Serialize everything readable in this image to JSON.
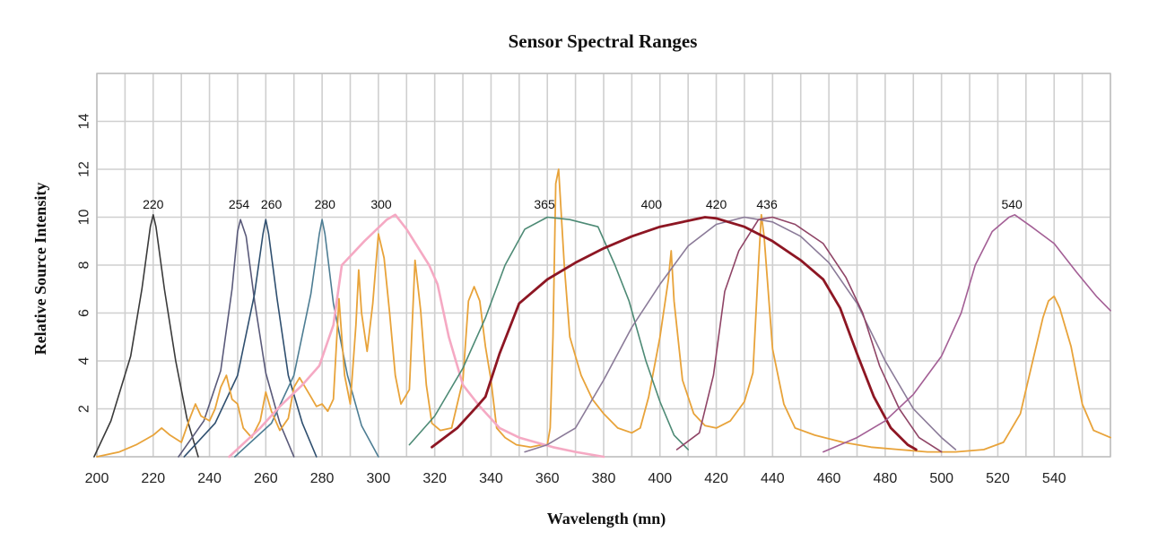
{
  "chart_data": {
    "type": "line",
    "title": "Sensor Spectral Ranges",
    "xlabel": "Wavelength (mn)",
    "ylabel": "Relative Source Intensity",
    "xlim": [
      200,
      560
    ],
    "ylim": [
      0,
      16
    ],
    "x_ticks": [
      200,
      220,
      240,
      260,
      280,
      300,
      320,
      340,
      360,
      380,
      400,
      420,
      440,
      460,
      480,
      500,
      520,
      540
    ],
    "y_ticks": [
      2,
      4,
      6,
      8,
      10,
      12,
      14
    ],
    "x_grid": [
      200,
      210,
      220,
      230,
      240,
      250,
      260,
      270,
      280,
      290,
      300,
      310,
      320,
      330,
      340,
      350,
      360,
      370,
      380,
      390,
      400,
      410,
      420,
      430,
      440,
      450,
      460,
      470,
      480,
      490,
      500,
      510,
      520,
      530,
      540,
      550,
      560
    ],
    "y_grid": [
      0,
      2,
      4,
      6,
      8,
      10,
      12,
      14,
      16
    ],
    "grid": true,
    "peak_labels": [
      {
        "text": "220",
        "x": 220
      },
      {
        "text": "254",
        "x": 250.5
      },
      {
        "text": "260",
        "x": 262
      },
      {
        "text": "280",
        "x": 281
      },
      {
        "text": "300",
        "x": 301
      },
      {
        "text": "365",
        "x": 359
      },
      {
        "text": "400",
        "x": 397
      },
      {
        "text": "420",
        "x": 420
      },
      {
        "text": "436",
        "x": 438
      },
      {
        "text": "540",
        "x": 525
      }
    ],
    "series": [
      {
        "color": "#3a3a3a",
        "width": 1.6,
        "points": [
          [
            199,
            0
          ],
          [
            205,
            1.5
          ],
          [
            212,
            4.2
          ],
          [
            216,
            7
          ],
          [
            219,
            9.6
          ],
          [
            220,
            10.1
          ],
          [
            221,
            9.6
          ],
          [
            224,
            7
          ],
          [
            228,
            4
          ],
          [
            232,
            1.6
          ],
          [
            236,
            0
          ]
        ]
      },
      {
        "color": "#5a5a7a",
        "width": 1.6,
        "points": [
          [
            229,
            0
          ],
          [
            238,
            1.5
          ],
          [
            244,
            3.6
          ],
          [
            248,
            7
          ],
          [
            250,
            9.4
          ],
          [
            251,
            9.9
          ],
          [
            253,
            9.2
          ],
          [
            256,
            6.5
          ],
          [
            260,
            3.5
          ],
          [
            265,
            1.4
          ],
          [
            270,
            0
          ]
        ]
      },
      {
        "color": "#2f4f6f",
        "width": 1.6,
        "points": [
          [
            231,
            0
          ],
          [
            242,
            1.4
          ],
          [
            250,
            3.4
          ],
          [
            256,
            6.8
          ],
          [
            259,
            9.3
          ],
          [
            260,
            9.9
          ],
          [
            261,
            9.3
          ],
          [
            264,
            6.6
          ],
          [
            268,
            3.4
          ],
          [
            273,
            1.4
          ],
          [
            278,
            0
          ]
        ]
      },
      {
        "color": "#4d7d93",
        "width": 1.6,
        "points": [
          [
            249,
            0
          ],
          [
            262,
            1.4
          ],
          [
            270,
            3.4
          ],
          [
            276,
            6.8
          ],
          [
            279,
            9.3
          ],
          [
            280,
            9.9
          ],
          [
            281,
            9.3
          ],
          [
            284,
            6.4
          ],
          [
            289,
            3.4
          ],
          [
            294,
            1.3
          ],
          [
            300,
            0
          ]
        ]
      },
      {
        "color": "#e8a33a",
        "width": 1.8,
        "points": [
          [
            200,
            0
          ],
          [
            208,
            0.2
          ],
          [
            214,
            0.5
          ],
          [
            220,
            0.9
          ],
          [
            223,
            1.2
          ],
          [
            226,
            0.9
          ],
          [
            230,
            0.6
          ],
          [
            233,
            1.6
          ],
          [
            235,
            2.2
          ],
          [
            237,
            1.7
          ],
          [
            240,
            1.5
          ],
          [
            242,
            2
          ],
          [
            244,
            2.9
          ],
          [
            246,
            3.4
          ],
          [
            248,
            2.4
          ],
          [
            250,
            2.2
          ],
          [
            252,
            1.2
          ],
          [
            255,
            0.8
          ],
          [
            258,
            1.5
          ],
          [
            260,
            2.7
          ],
          [
            262,
            1.9
          ],
          [
            265,
            1.1
          ],
          [
            268,
            1.6
          ],
          [
            270,
            2.9
          ],
          [
            272,
            3.3
          ],
          [
            274,
            2.9
          ],
          [
            276,
            2.5
          ],
          [
            278,
            2.1
          ],
          [
            280,
            2.2
          ],
          [
            282,
            1.9
          ],
          [
            284,
            2.4
          ],
          [
            286,
            6.6
          ],
          [
            288,
            3.4
          ],
          [
            290,
            2.2
          ],
          [
            292,
            5.5
          ],
          [
            293,
            7.8
          ],
          [
            294,
            6
          ],
          [
            296,
            4.4
          ],
          [
            298,
            6.4
          ],
          [
            300,
            9.3
          ],
          [
            302,
            8.3
          ],
          [
            304,
            6
          ],
          [
            306,
            3.4
          ],
          [
            308,
            2.2
          ],
          [
            311,
            2.8
          ],
          [
            313,
            8.2
          ],
          [
            315,
            6.1
          ],
          [
            317,
            3
          ],
          [
            319,
            1.4
          ],
          [
            322,
            1.1
          ],
          [
            326,
            1.2
          ],
          [
            330,
            3.2
          ],
          [
            332,
            6.5
          ],
          [
            334,
            7.1
          ],
          [
            336,
            6.5
          ],
          [
            338,
            4.6
          ],
          [
            340,
            3.2
          ],
          [
            342,
            1.2
          ],
          [
            345,
            0.8
          ],
          [
            349,
            0.5
          ],
          [
            354,
            0.4
          ],
          [
            358,
            0.5
          ],
          [
            360,
            0.5
          ],
          [
            361,
            1.2
          ],
          [
            362,
            5
          ],
          [
            363,
            11.4
          ],
          [
            364,
            12
          ],
          [
            366,
            8
          ],
          [
            368,
            5
          ],
          [
            372,
            3.4
          ],
          [
            376,
            2.4
          ],
          [
            380,
            1.8
          ],
          [
            385,
            1.2
          ],
          [
            390,
            1
          ],
          [
            393,
            1.2
          ],
          [
            396,
            2.5
          ],
          [
            400,
            5
          ],
          [
            403,
            7.4
          ],
          [
            404,
            8.6
          ],
          [
            405,
            6.5
          ],
          [
            408,
            3.2
          ],
          [
            412,
            1.8
          ],
          [
            416,
            1.3
          ],
          [
            420,
            1.2
          ],
          [
            425,
            1.5
          ],
          [
            430,
            2.3
          ],
          [
            433,
            3.5
          ],
          [
            435,
            8
          ],
          [
            436,
            10.1
          ],
          [
            437,
            9.2
          ],
          [
            440,
            4.5
          ],
          [
            444,
            2.2
          ],
          [
            448,
            1.2
          ],
          [
            455,
            0.9
          ],
          [
            465,
            0.6
          ],
          [
            475,
            0.4
          ],
          [
            485,
            0.3
          ],
          [
            495,
            0.2
          ],
          [
            505,
            0.2
          ],
          [
            515,
            0.3
          ],
          [
            522,
            0.6
          ],
          [
            528,
            1.8
          ],
          [
            532,
            3.8
          ],
          [
            536,
            5.8
          ],
          [
            538,
            6.5
          ],
          [
            540,
            6.7
          ],
          [
            542,
            6.2
          ],
          [
            546,
            4.6
          ],
          [
            550,
            2.2
          ],
          [
            554,
            1.1
          ],
          [
            560,
            0.8
          ]
        ]
      },
      {
        "color": "#f5a9c3",
        "width": 2.6,
        "points": [
          [
            247,
            0
          ],
          [
            258,
            1.2
          ],
          [
            265,
            2.1
          ],
          [
            273,
            3
          ],
          [
            279,
            3.8
          ],
          [
            284,
            5.5
          ],
          [
            287,
            8
          ],
          [
            295,
            9
          ],
          [
            303,
            9.9
          ],
          [
            306,
            10.1
          ],
          [
            310,
            9.5
          ],
          [
            318,
            8
          ],
          [
            321,
            7.2
          ],
          [
            325,
            5
          ],
          [
            330,
            3
          ],
          [
            336,
            2.1
          ],
          [
            343,
            1.2
          ],
          [
            350,
            0.8
          ],
          [
            362,
            0.4
          ],
          [
            370,
            0.2
          ],
          [
            380,
            0
          ]
        ]
      },
      {
        "color": "#4d8a75",
        "width": 1.6,
        "points": [
          [
            311,
            0.5
          ],
          [
            320,
            1.7
          ],
          [
            330,
            3.7
          ],
          [
            338,
            5.8
          ],
          [
            345,
            8
          ],
          [
            352,
            9.5
          ],
          [
            360,
            10
          ],
          [
            368,
            9.9
          ],
          [
            378,
            9.6
          ],
          [
            384,
            8
          ],
          [
            389,
            6.5
          ],
          [
            395,
            4
          ],
          [
            400,
            2.3
          ],
          [
            405,
            0.9
          ],
          [
            410,
            0.3
          ]
        ]
      },
      {
        "color": "#8a7a98",
        "width": 1.6,
        "points": [
          [
            352,
            0.2
          ],
          [
            360,
            0.5
          ],
          [
            370,
            1.2
          ],
          [
            380,
            3.2
          ],
          [
            390,
            5.4
          ],
          [
            400,
            7.2
          ],
          [
            410,
            8.8
          ],
          [
            420,
            9.7
          ],
          [
            430,
            10
          ],
          [
            440,
            9.8
          ],
          [
            450,
            9.2
          ],
          [
            460,
            8.1
          ],
          [
            470,
            6.4
          ],
          [
            480,
            4
          ],
          [
            490,
            2
          ],
          [
            500,
            0.8
          ],
          [
            505,
            0.3
          ]
        ]
      },
      {
        "color": "#8f4466",
        "width": 1.6,
        "points": [
          [
            406,
            0.3
          ],
          [
            414,
            1
          ],
          [
            419,
            3.4
          ],
          [
            423,
            6.9
          ],
          [
            428,
            8.6
          ],
          [
            435,
            9.9
          ],
          [
            440,
            10
          ],
          [
            448,
            9.7
          ],
          [
            458,
            8.9
          ],
          [
            466,
            7.5
          ],
          [
            472,
            6
          ],
          [
            478,
            3.8
          ],
          [
            485,
            2
          ],
          [
            492,
            0.8
          ],
          [
            500,
            0.2
          ]
        ]
      },
      {
        "color": "#8d1623",
        "width": 2.8,
        "points": [
          [
            319,
            0.4
          ],
          [
            328,
            1.2
          ],
          [
            335,
            2.1
          ],
          [
            338,
            2.5
          ],
          [
            343,
            4.3
          ],
          [
            350,
            6.4
          ],
          [
            360,
            7.4
          ],
          [
            370,
            8.1
          ],
          [
            380,
            8.7
          ],
          [
            390,
            9.2
          ],
          [
            400,
            9.6
          ],
          [
            410,
            9.85
          ],
          [
            416,
            10
          ],
          [
            420,
            9.95
          ],
          [
            430,
            9.6
          ],
          [
            440,
            9
          ],
          [
            450,
            8.2
          ],
          [
            458,
            7.4
          ],
          [
            464,
            6.2
          ],
          [
            470,
            4.3
          ],
          [
            476,
            2.5
          ],
          [
            482,
            1.2
          ],
          [
            488,
            0.5
          ],
          [
            491,
            0.3
          ]
        ]
      },
      {
        "color": "#a35f95",
        "width": 1.6,
        "points": [
          [
            458,
            0.2
          ],
          [
            470,
            0.8
          ],
          [
            480,
            1.5
          ],
          [
            490,
            2.6
          ],
          [
            500,
            4.2
          ],
          [
            507,
            6
          ],
          [
            512,
            8
          ],
          [
            518,
            9.4
          ],
          [
            524,
            10
          ],
          [
            526,
            10.1
          ],
          [
            532,
            9.6
          ],
          [
            540,
            8.9
          ],
          [
            548,
            7.7
          ],
          [
            555,
            6.7
          ],
          [
            560,
            6.1
          ]
        ]
      }
    ]
  }
}
